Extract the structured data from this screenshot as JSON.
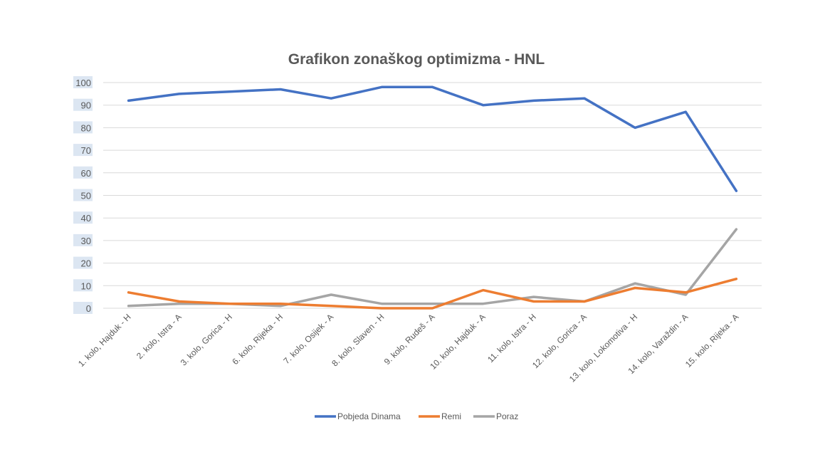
{
  "chart_data": {
    "type": "line",
    "title": "Grafikon zonaškog optimizma - HNL",
    "xlabel": "",
    "ylabel": "",
    "ylim": [
      0,
      100
    ],
    "yticks": [
      0,
      10,
      20,
      30,
      40,
      50,
      60,
      70,
      80,
      90,
      100
    ],
    "grid": true,
    "legend_position": "bottom",
    "categories": [
      "1. kolo, Hajduk - H",
      "2. kolo, Istra - A",
      "3. kolo, Gorica - H",
      "6. kolo, Rijeka - H",
      "7. kolo, Osijek - A",
      "8. kolo, Slaven - H",
      "9. kolo, Rudeš - A",
      "10. kolo, Hajduk - A",
      "11. kolo, Istra - H",
      "12. kolo, Gorica - A",
      "13. kolo, Lokomotiva - H",
      "14. kolo, Varaždin - A",
      "15. kolo, Rijeka - A"
    ],
    "series": [
      {
        "name": "Pobjeda Dinama",
        "color": "#4472c4",
        "values": [
          92,
          95,
          96,
          97,
          93,
          98,
          98,
          90,
          92,
          93,
          80,
          87,
          52
        ]
      },
      {
        "name": "Remi",
        "color": "#ed7d31",
        "values": [
          7,
          3,
          2,
          2,
          1,
          0,
          0,
          8,
          3,
          3,
          9,
          7,
          13
        ]
      },
      {
        "name": "Poraz",
        "color": "#a5a5a5",
        "values": [
          1,
          2,
          2,
          1,
          6,
          2,
          2,
          2,
          5,
          3,
          11,
          6,
          35
        ]
      }
    ]
  }
}
